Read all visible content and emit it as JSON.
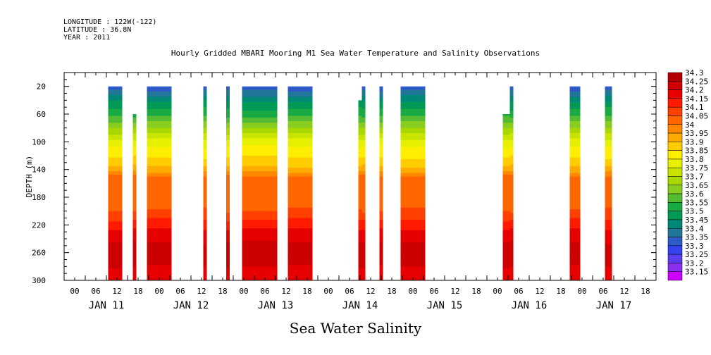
{
  "header": {
    "longitude": "LONGITUDE : 122W(-122)",
    "latitude": "LATITUDE : 36.8N",
    "year": "YEAR : 2011"
  },
  "chart_data": {
    "type": "heatmap",
    "title": "Hourly Gridded MBARI Mooring M1 Sea Water Temperature and Salinity Observations",
    "variable_label": "Sea Water Salinity",
    "ylabel": "DEPTH (m)",
    "xlabel": "",
    "y_axis": {
      "range": [
        0,
        300
      ],
      "inverted": true,
      "ticks": [
        20,
        60,
        100,
        140,
        180,
        220,
        260,
        300
      ],
      "minor_step": 10
    },
    "x_axis": {
      "range_hours": [
        0,
        168
      ],
      "day_labels": [
        "JAN 11",
        "JAN 12",
        "JAN 13",
        "JAN 14",
        "JAN 15",
        "JAN 16",
        "JAN 17"
      ],
      "hour_labels": [
        "00",
        "06",
        "12",
        "18"
      ],
      "minor_step_hours": 3
    },
    "legend": {
      "placement": "right",
      "levels": [
        "34.3",
        "34.25",
        "34.2",
        "34.15",
        "34.1",
        "34.05",
        "34",
        "33.95",
        "33.9",
        "33.85",
        "33.8",
        "33.75",
        "33.7",
        "33.65",
        "33.6",
        "33.55",
        "33.5",
        "33.45",
        "33.4",
        "33.35",
        "33.3",
        "33.25",
        "33.2",
        "33.15"
      ],
      "colors": [
        "#b30000",
        "#cc0000",
        "#e60000",
        "#ff1a00",
        "#ff4000",
        "#ff6600",
        "#ff8800",
        "#ffaa00",
        "#ffcc00",
        "#ffee00",
        "#e6f000",
        "#c8e400",
        "#a8d800",
        "#88cc20",
        "#55bb33",
        "#1aaa44",
        "#009955",
        "#008877",
        "#227799",
        "#2e5bc8",
        "#3344ee",
        "#5a3df0",
        "#8a2ef0",
        "#cc00ff"
      ]
    },
    "observation_blocks": [
      {
        "start_hour": 12.5,
        "end_hour": 16.5,
        "top_depth": 20
      },
      {
        "start_hour": 19.5,
        "end_hour": 20.5,
        "top_depth": 60
      },
      {
        "start_hour": 23.5,
        "end_hour": 30.5,
        "top_depth": 20
      },
      {
        "start_hour": 39.5,
        "end_hour": 40.5,
        "top_depth": 20
      },
      {
        "start_hour": 46.0,
        "end_hour": 47.0,
        "top_depth": 20
      },
      {
        "start_hour": 50.5,
        "end_hour": 60.5,
        "top_depth": 20
      },
      {
        "start_hour": 63.5,
        "end_hour": 70.5,
        "top_depth": 20
      },
      {
        "start_hour": 83.5,
        "end_hour": 84.5,
        "top_depth": 40
      },
      {
        "start_hour": 84.5,
        "end_hour": 85.5,
        "top_depth": 20
      },
      {
        "start_hour": 89.5,
        "end_hour": 90.5,
        "top_depth": 20
      },
      {
        "start_hour": 95.5,
        "end_hour": 102.5,
        "top_depth": 20
      },
      {
        "start_hour": 124.5,
        "end_hour": 126.5,
        "top_depth": 60
      },
      {
        "start_hour": 126.5,
        "end_hour": 127.5,
        "top_depth": 20
      },
      {
        "start_hour": 143.5,
        "end_hour": 146.5,
        "top_depth": 20
      },
      {
        "start_hour": 153.5,
        "end_hour": 155.5,
        "top_depth": 20
      }
    ],
    "salinity_profile": {
      "depths": [
        20,
        30,
        40,
        50,
        60,
        70,
        80,
        90,
        100,
        110,
        120,
        130,
        140,
        150,
        160,
        170,
        180,
        190,
        200,
        210,
        220,
        230,
        240,
        250,
        260,
        270,
        280,
        290,
        300
      ],
      "values": [
        33.36,
        33.43,
        33.49,
        33.54,
        33.58,
        33.64,
        33.7,
        33.76,
        33.82,
        33.86,
        33.89,
        33.93,
        33.97,
        34.06,
        34.07,
        34.08,
        34.08,
        34.09,
        34.1,
        34.14,
        34.18,
        34.21,
        34.23,
        34.27,
        34.28,
        34.28,
        34.25,
        34.23,
        34.22
      ]
    }
  }
}
